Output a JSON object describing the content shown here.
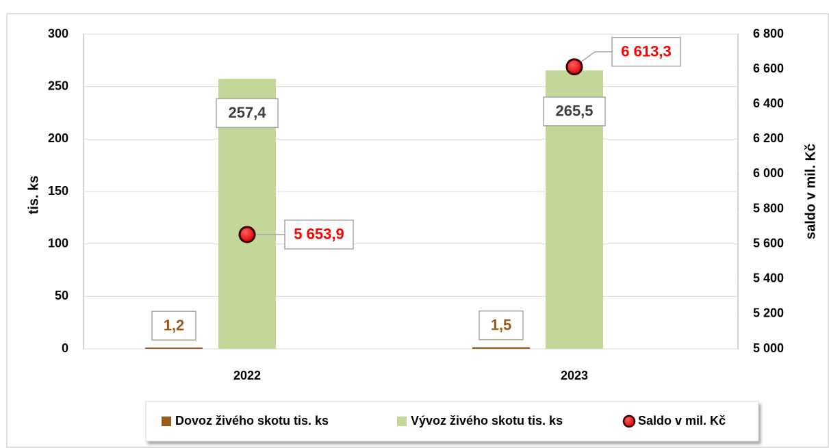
{
  "chart_data": {
    "type": "bar",
    "categories": [
      "2022",
      "2023"
    ],
    "series": [
      {
        "name": "Dovoz živého skotu  tis. ks",
        "color": "#9c5a1a",
        "values": [
          1.2,
          1.5
        ],
        "value_labels": [
          "1,2",
          "1,5"
        ]
      },
      {
        "name": "Vývoz živého skotu tis. ks",
        "color": "#c4d79b",
        "values": [
          257.4,
          265.5
        ],
        "value_labels": [
          "257,4",
          "265,5"
        ]
      },
      {
        "name": "Saldo v mil. Kč",
        "color": "#ff0000",
        "type": "scatter",
        "axis": "y2",
        "values": [
          5653.9,
          6613.3
        ],
        "value_labels": [
          "5 653,9",
          "6 613,3"
        ]
      }
    ],
    "ylabel": "tis. ks",
    "y2label": "saldo v mil. Kč",
    "ylim": [
      0,
      300
    ],
    "yticks": [
      0,
      50,
      100,
      150,
      200,
      250,
      300
    ],
    "y2lim": [
      5000,
      6800
    ],
    "y2ticks": [
      {
        "value": 5000,
        "label": "5 000"
      },
      {
        "value": 5200,
        "label": "5 200"
      },
      {
        "value": 5400,
        "label": "5 400"
      },
      {
        "value": 5600,
        "label": "5 600"
      },
      {
        "value": 5800,
        "label": "5 800"
      },
      {
        "value": 6000,
        "label": "6 000"
      },
      {
        "value": 6200,
        "label": "6 200"
      },
      {
        "value": 6400,
        "label": "6 400"
      },
      {
        "value": 6600,
        "label": "6 600"
      },
      {
        "value": 6800,
        "label": "6 800"
      }
    ],
    "grid": true,
    "legend": "bottom"
  }
}
